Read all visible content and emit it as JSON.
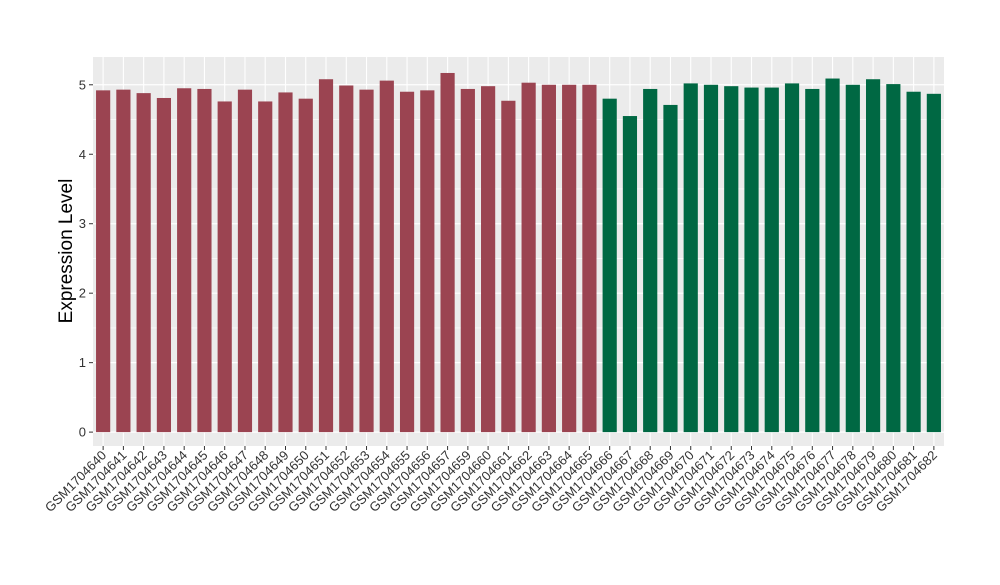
{
  "chart_data": {
    "type": "bar",
    "title": "",
    "xlabel": "",
    "ylabel": "Expression Level",
    "ylim": [
      -0.2,
      5.4
    ],
    "yticks": [
      0,
      1,
      2,
      3,
      4,
      5
    ],
    "grid": true,
    "legend": "none",
    "colors": {
      "group1": "#9b4451",
      "group2": "#006843",
      "panel": "#ebebeb",
      "grid": "#ffffff"
    },
    "categories": [
      "GSM1704640",
      "GSM1704641",
      "GSM1704642",
      "GSM1704643",
      "GSM1704644",
      "GSM1704645",
      "GSM1704646",
      "GSM1704647",
      "GSM1704648",
      "GSM1704649",
      "GSM1704650",
      "GSM1704651",
      "GSM1704652",
      "GSM1704653",
      "GSM1704654",
      "GSM1704655",
      "GSM1704656",
      "GSM1704657",
      "GSM1704659",
      "GSM1704660",
      "GSM1704661",
      "GSM1704662",
      "GSM1704663",
      "GSM1704664",
      "GSM1704665",
      "GSM1704666",
      "GSM1704667",
      "GSM1704668",
      "GSM1704669",
      "GSM1704670",
      "GSM1704671",
      "GSM1704672",
      "GSM1704673",
      "GSM1704674",
      "GSM1704675",
      "GSM1704676",
      "GSM1704677",
      "GSM1704678",
      "GSM1704679",
      "GSM1704680",
      "GSM1704681",
      "GSM1704682"
    ],
    "values": [
      4.92,
      4.93,
      4.88,
      4.81,
      4.95,
      4.94,
      4.76,
      4.93,
      4.76,
      4.89,
      4.8,
      5.08,
      4.99,
      4.93,
      5.06,
      4.9,
      4.92,
      5.17,
      4.94,
      4.98,
      4.77,
      5.03,
      5.0,
      5.0,
      5.0,
      4.8,
      4.55,
      4.94,
      4.71,
      5.02,
      5.0,
      4.98,
      4.96,
      4.96,
      5.02,
      4.94,
      5.09,
      5.0,
      5.08,
      5.01,
      4.9,
      4.87
    ],
    "groups": [
      1,
      1,
      1,
      1,
      1,
      1,
      1,
      1,
      1,
      1,
      1,
      1,
      1,
      1,
      1,
      1,
      1,
      1,
      1,
      1,
      1,
      1,
      1,
      1,
      1,
      2,
      2,
      2,
      2,
      2,
      2,
      2,
      2,
      2,
      2,
      2,
      2,
      2,
      2,
      2,
      2,
      2
    ]
  }
}
